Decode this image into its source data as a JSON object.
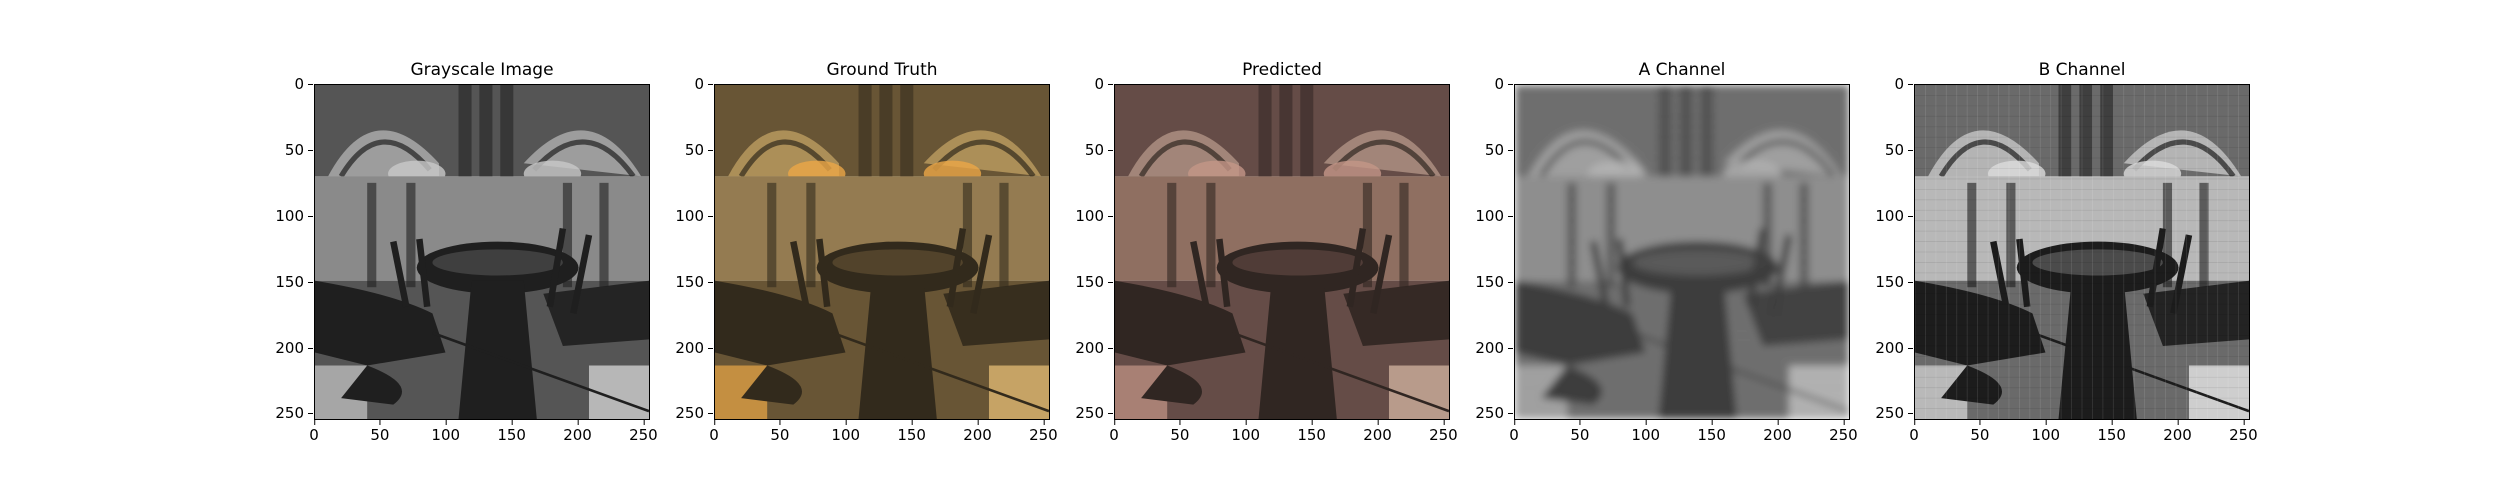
{
  "panels": [
    {
      "title": "Grayscale Image",
      "variant": "gray"
    },
    {
      "title": "Ground Truth",
      "variant": "truth"
    },
    {
      "title": "Predicted",
      "variant": "pred"
    },
    {
      "title": "A Channel",
      "variant": "achan"
    },
    {
      "title": "B Channel",
      "variant": "bchan"
    }
  ],
  "axis": {
    "y_ticks": [
      "0",
      "50",
      "100",
      "150",
      "200",
      "250"
    ],
    "x_ticks": [
      "0",
      "50",
      "100",
      "150",
      "200",
      "250"
    ],
    "range": [
      0,
      255
    ]
  }
}
